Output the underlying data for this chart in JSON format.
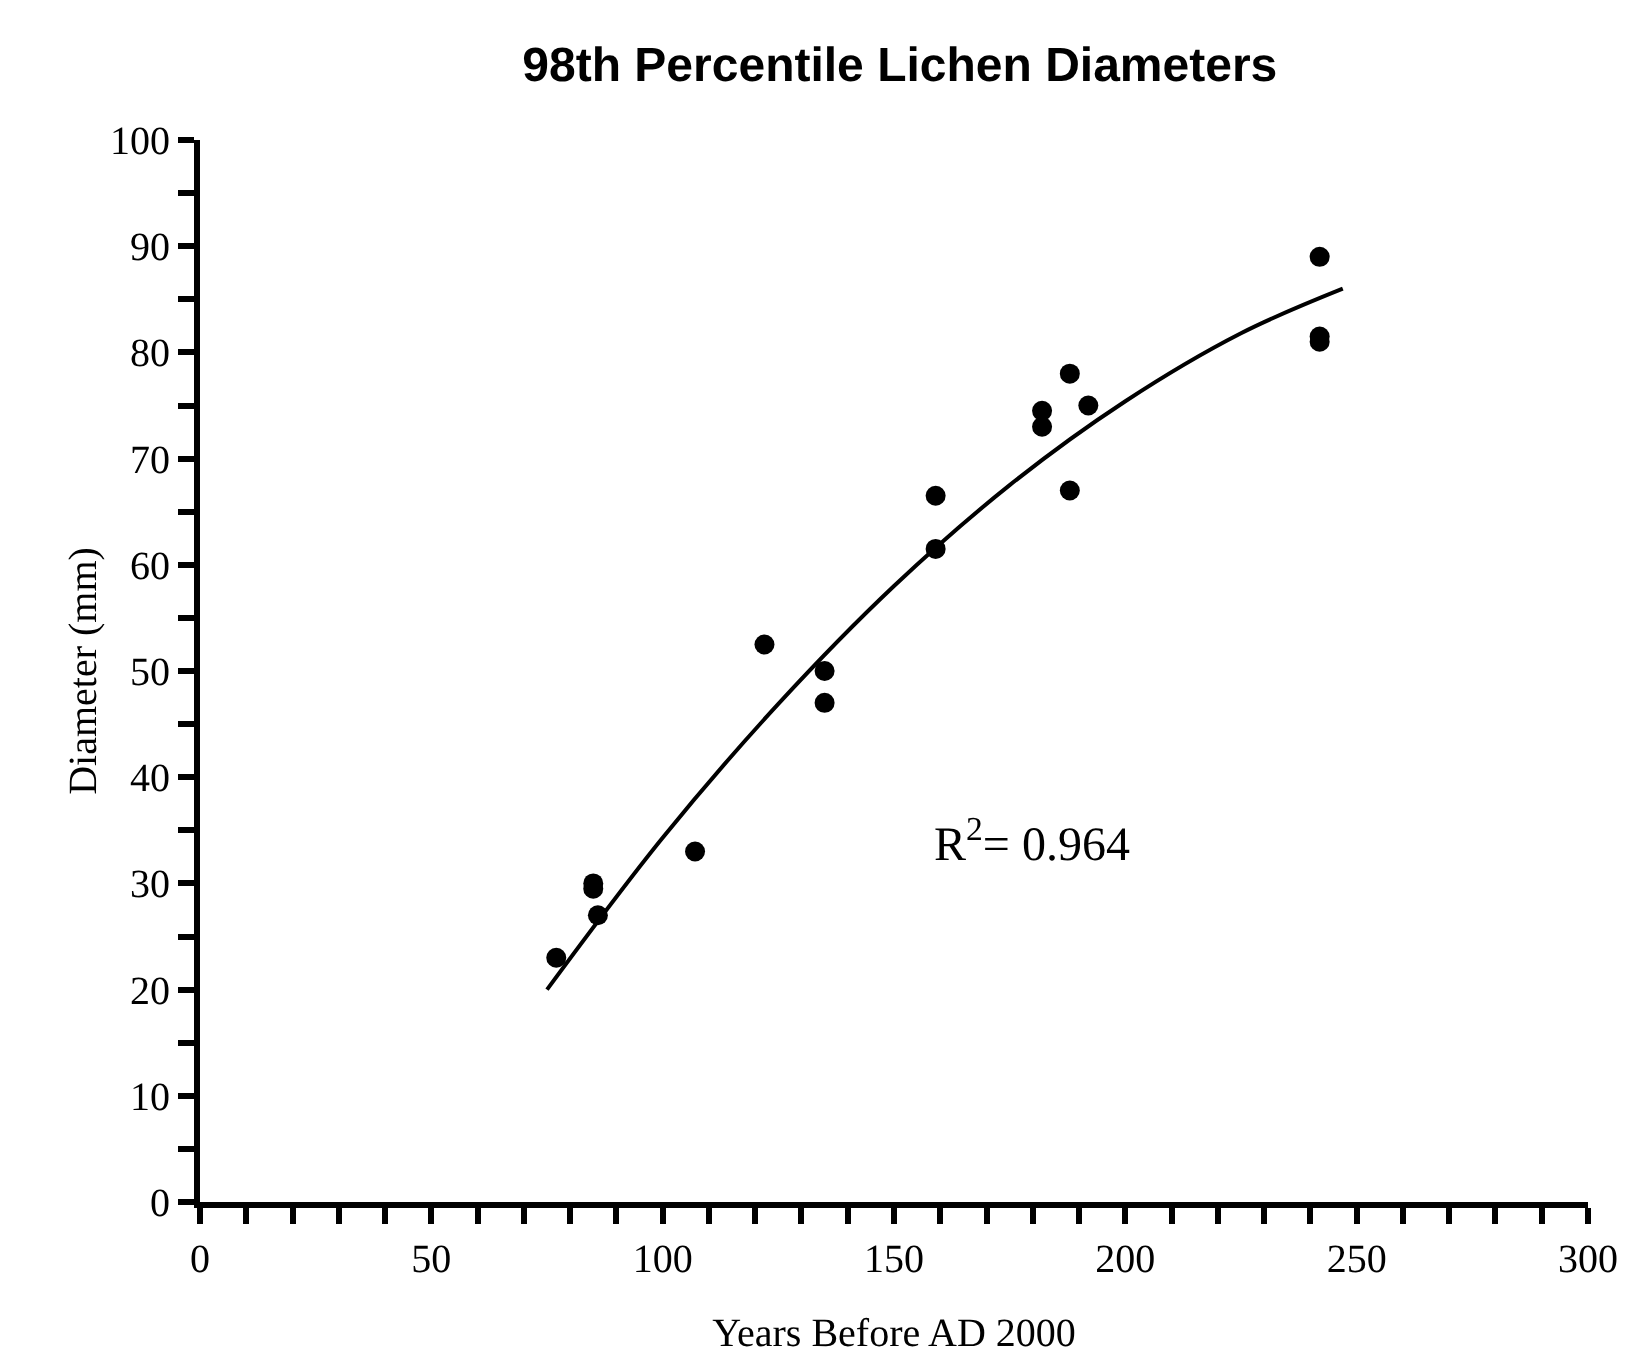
{
  "chart_data": {
    "type": "scatter",
    "title": "98th Percentile Lichen Diameters",
    "xlabel": "Years Before AD 2000",
    "ylabel": "Diameter (mm)",
    "annotations": [
      "R$^{2}$= 0.964"
    ],
    "series": [
      {
        "color": "#000000",
        "marker": "circle",
        "x": [
          77,
          85,
          85,
          86,
          107,
          122,
          135,
          135,
          159,
          159,
          182,
          182,
          188,
          188,
          192,
          242,
          242,
          242
        ],
        "values": [
          23,
          30,
          29.5,
          27,
          33,
          52.5,
          50,
          47,
          61.5,
          66.5,
          74.5,
          73,
          78,
          67,
          75,
          89,
          81.5,
          81
        ]
      },
      {
        "type": "line",
        "color": "#000000",
        "marker": "none",
        "line_style": "solid",
        "x": [
          75,
          100,
          125,
          150,
          175,
          200,
          225,
          247
        ],
        "values": [
          20,
          34.3,
          46.9,
          58,
          67.5,
          75.4,
          81.8,
          86
        ]
      }
    ],
    "xlim": [
      0,
      300
    ],
    "xticks": [
      0,
      {
        "value": 10,
        "label": null
      },
      {
        "value": 20,
        "label": null
      },
      {
        "value": 30,
        "label": null
      },
      {
        "value": 40,
        "label": null
      },
      50,
      {
        "value": 60,
        "label": null
      },
      {
        "value": 70,
        "label": null
      },
      {
        "value": 80,
        "label": null
      },
      {
        "value": 90,
        "label": null
      },
      100,
      {
        "value": 110,
        "label": null
      },
      {
        "value": 120,
        "label": null
      },
      {
        "value": 130,
        "label": null
      },
      {
        "value": 140,
        "label": null
      },
      150,
      {
        "value": 160,
        "label": null
      },
      {
        "value": 170,
        "label": null
      },
      {
        "value": 180,
        "label": null
      },
      {
        "value": 190,
        "label": null
      },
      200,
      {
        "value": 210,
        "label": null
      },
      {
        "value": 220,
        "label": null
      },
      {
        "value": 230,
        "label": null
      },
      {
        "value": 240,
        "label": null
      },
      250,
      {
        "value": 260,
        "label": null
      },
      {
        "value": 270,
        "label": null
      },
      {
        "value": 280,
        "label": null
      },
      {
        "value": 290,
        "label": null
      },
      300
    ],
    "ylim": [
      0,
      100
    ],
    "yticks": [
      0,
      {
        "value": 5,
        "label": null
      },
      10,
      {
        "value": 15,
        "label": null
      },
      20,
      {
        "value": 25,
        "label": null
      },
      30,
      {
        "value": 35,
        "label": null
      },
      40,
      {
        "value": 45,
        "label": null
      },
      50,
      {
        "value": 55,
        "label": null
      },
      60,
      {
        "value": 65,
        "label": null
      },
      70,
      {
        "value": 75,
        "label": null
      },
      80,
      {
        "value": 85,
        "label": null
      },
      90,
      {
        "value": 95,
        "label": null
      },
      100
    ],
    "grid": false
  }
}
